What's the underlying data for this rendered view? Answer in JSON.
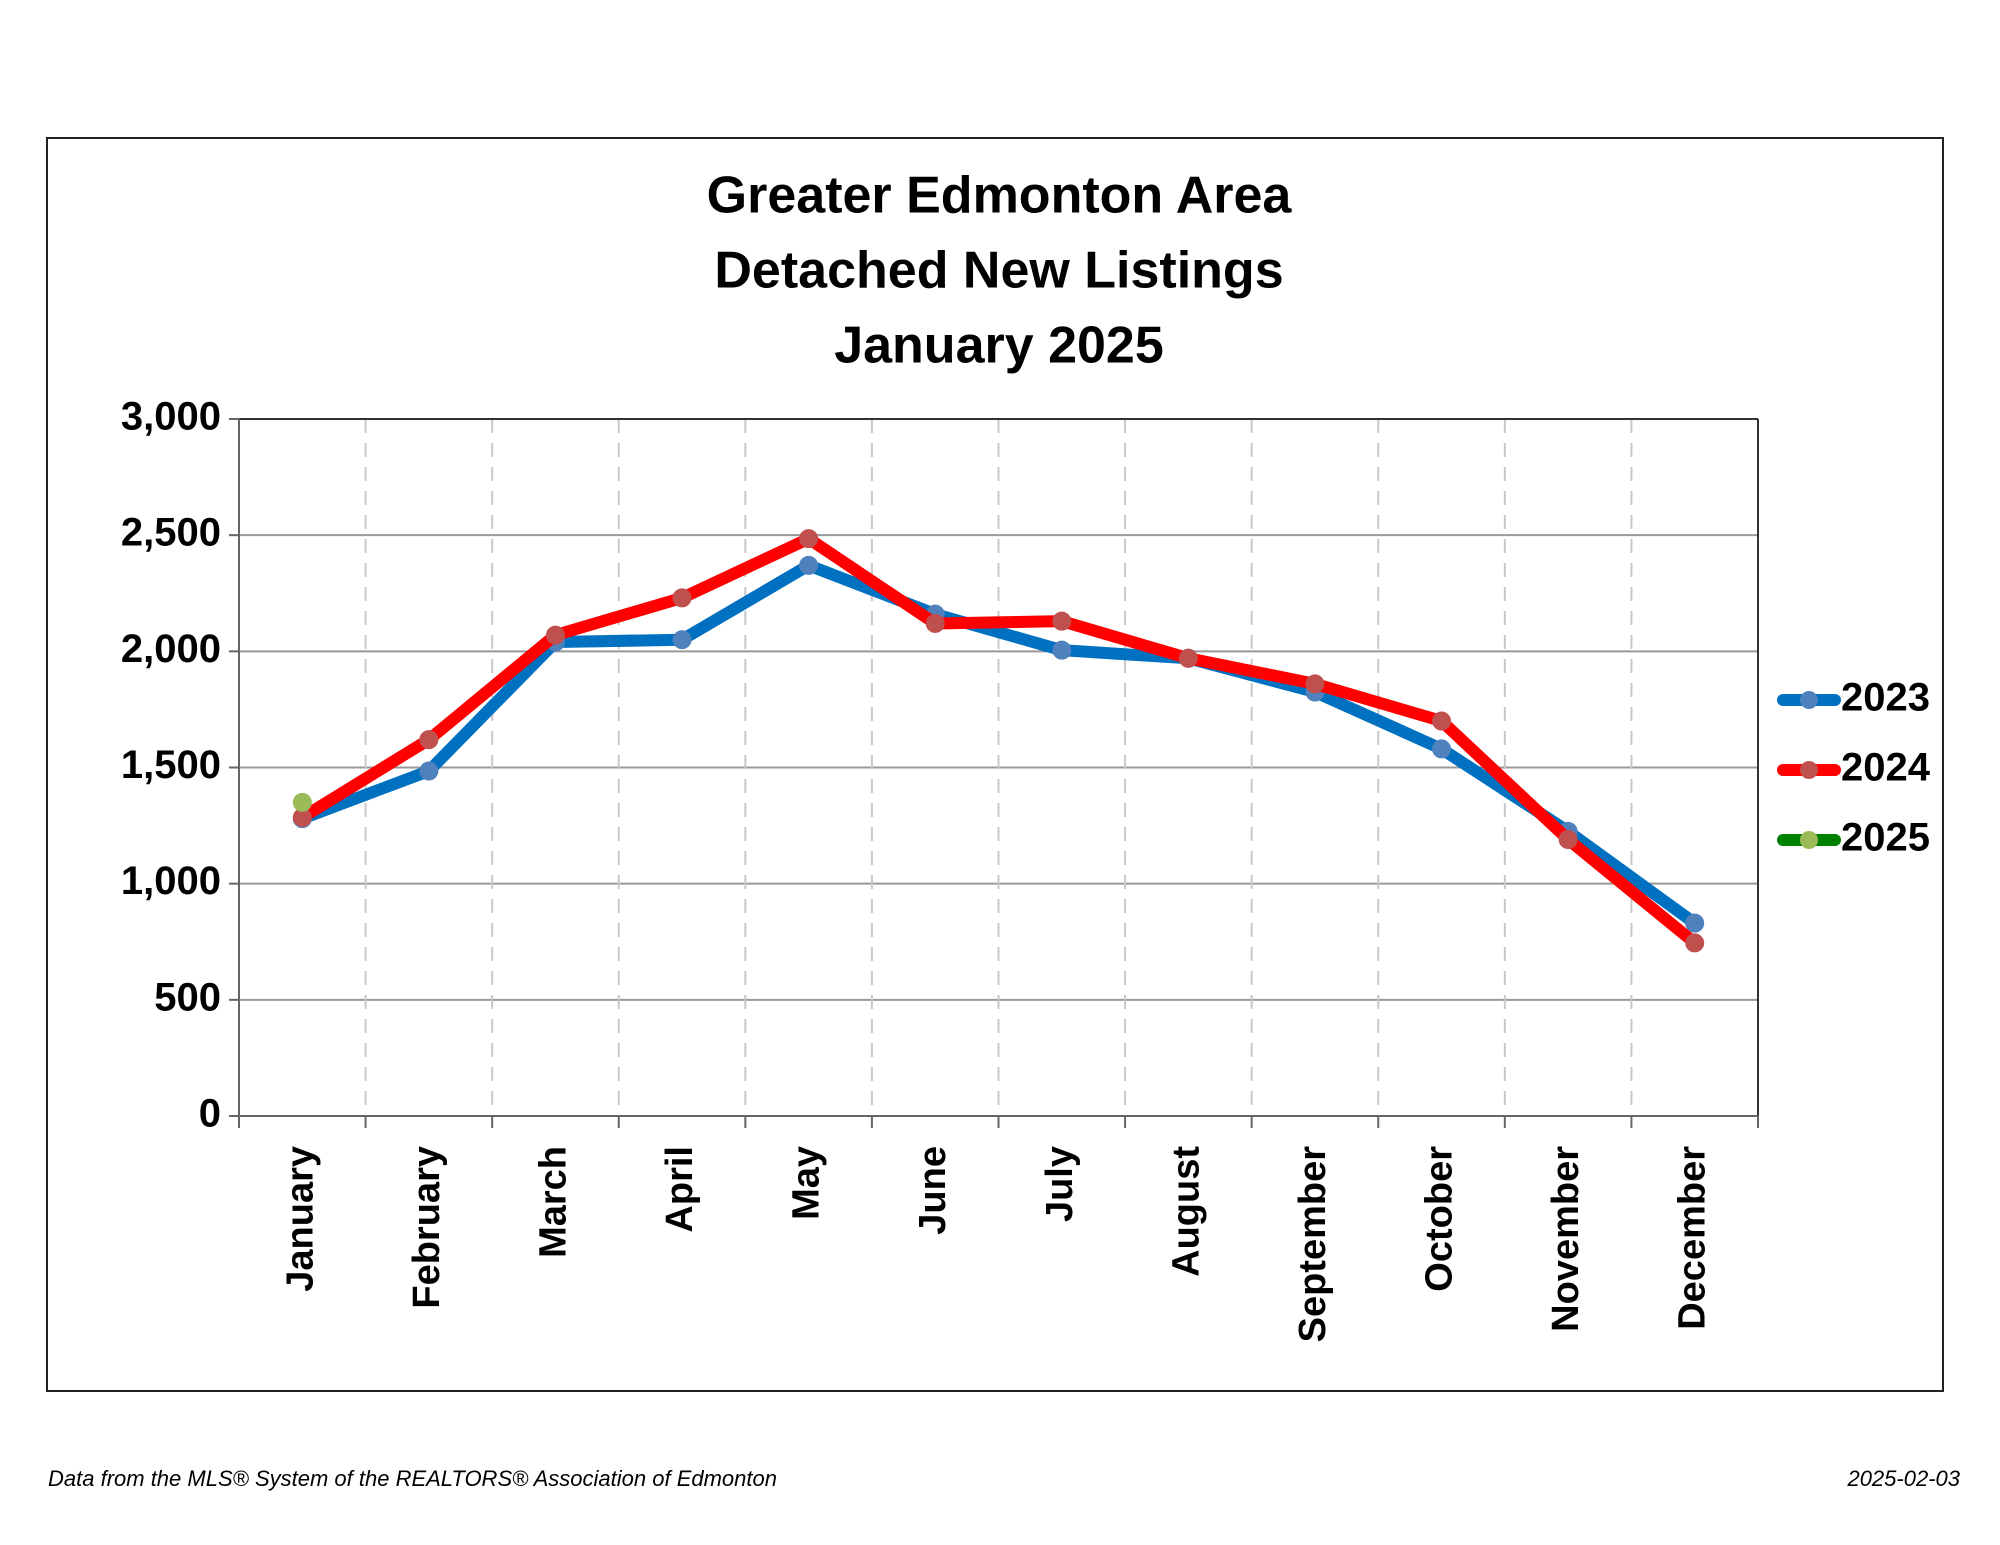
{
  "chart_data": {
    "type": "line",
    "title_lines": [
      "Greater Edmonton Area",
      "Detached New Listings",
      "January 2025"
    ],
    "categories": [
      "January",
      "February",
      "March",
      "April",
      "May",
      "June",
      "July",
      "August",
      "September",
      "October",
      "November",
      "December"
    ],
    "ylim": [
      0,
      3000
    ],
    "yticks": [
      0,
      500,
      1000,
      1500,
      2000,
      2500,
      3000
    ],
    "ytick_labels": [
      "0",
      "500",
      "1,000",
      "1,500",
      "2,000",
      "2,500",
      "3,000"
    ],
    "grid": true,
    "legend_position": "right",
    "series": [
      {
        "name": "2023",
        "color": "#0070c0",
        "marker_color": "#4f81bd",
        "values": [
          1280,
          1485,
          2040,
          2050,
          2370,
          2160,
          2005,
          1970,
          1825,
          1580,
          1225,
          830
        ]
      },
      {
        "name": "2024",
        "color": "#ff0000",
        "marker_color": "#c0504d",
        "values": [
          1285,
          1620,
          2070,
          2230,
          2485,
          2120,
          2130,
          1970,
          1860,
          1700,
          1190,
          745
        ]
      },
      {
        "name": "2025",
        "color": "#008000",
        "marker_color": "#9bbb59",
        "values": [
          1350,
          null,
          null,
          null,
          null,
          null,
          null,
          null,
          null,
          null,
          null,
          null
        ]
      }
    ]
  },
  "footer": {
    "source": "Data from the MLS® System of the REALTORS® Association of Edmonton",
    "date": "2025-02-03"
  }
}
